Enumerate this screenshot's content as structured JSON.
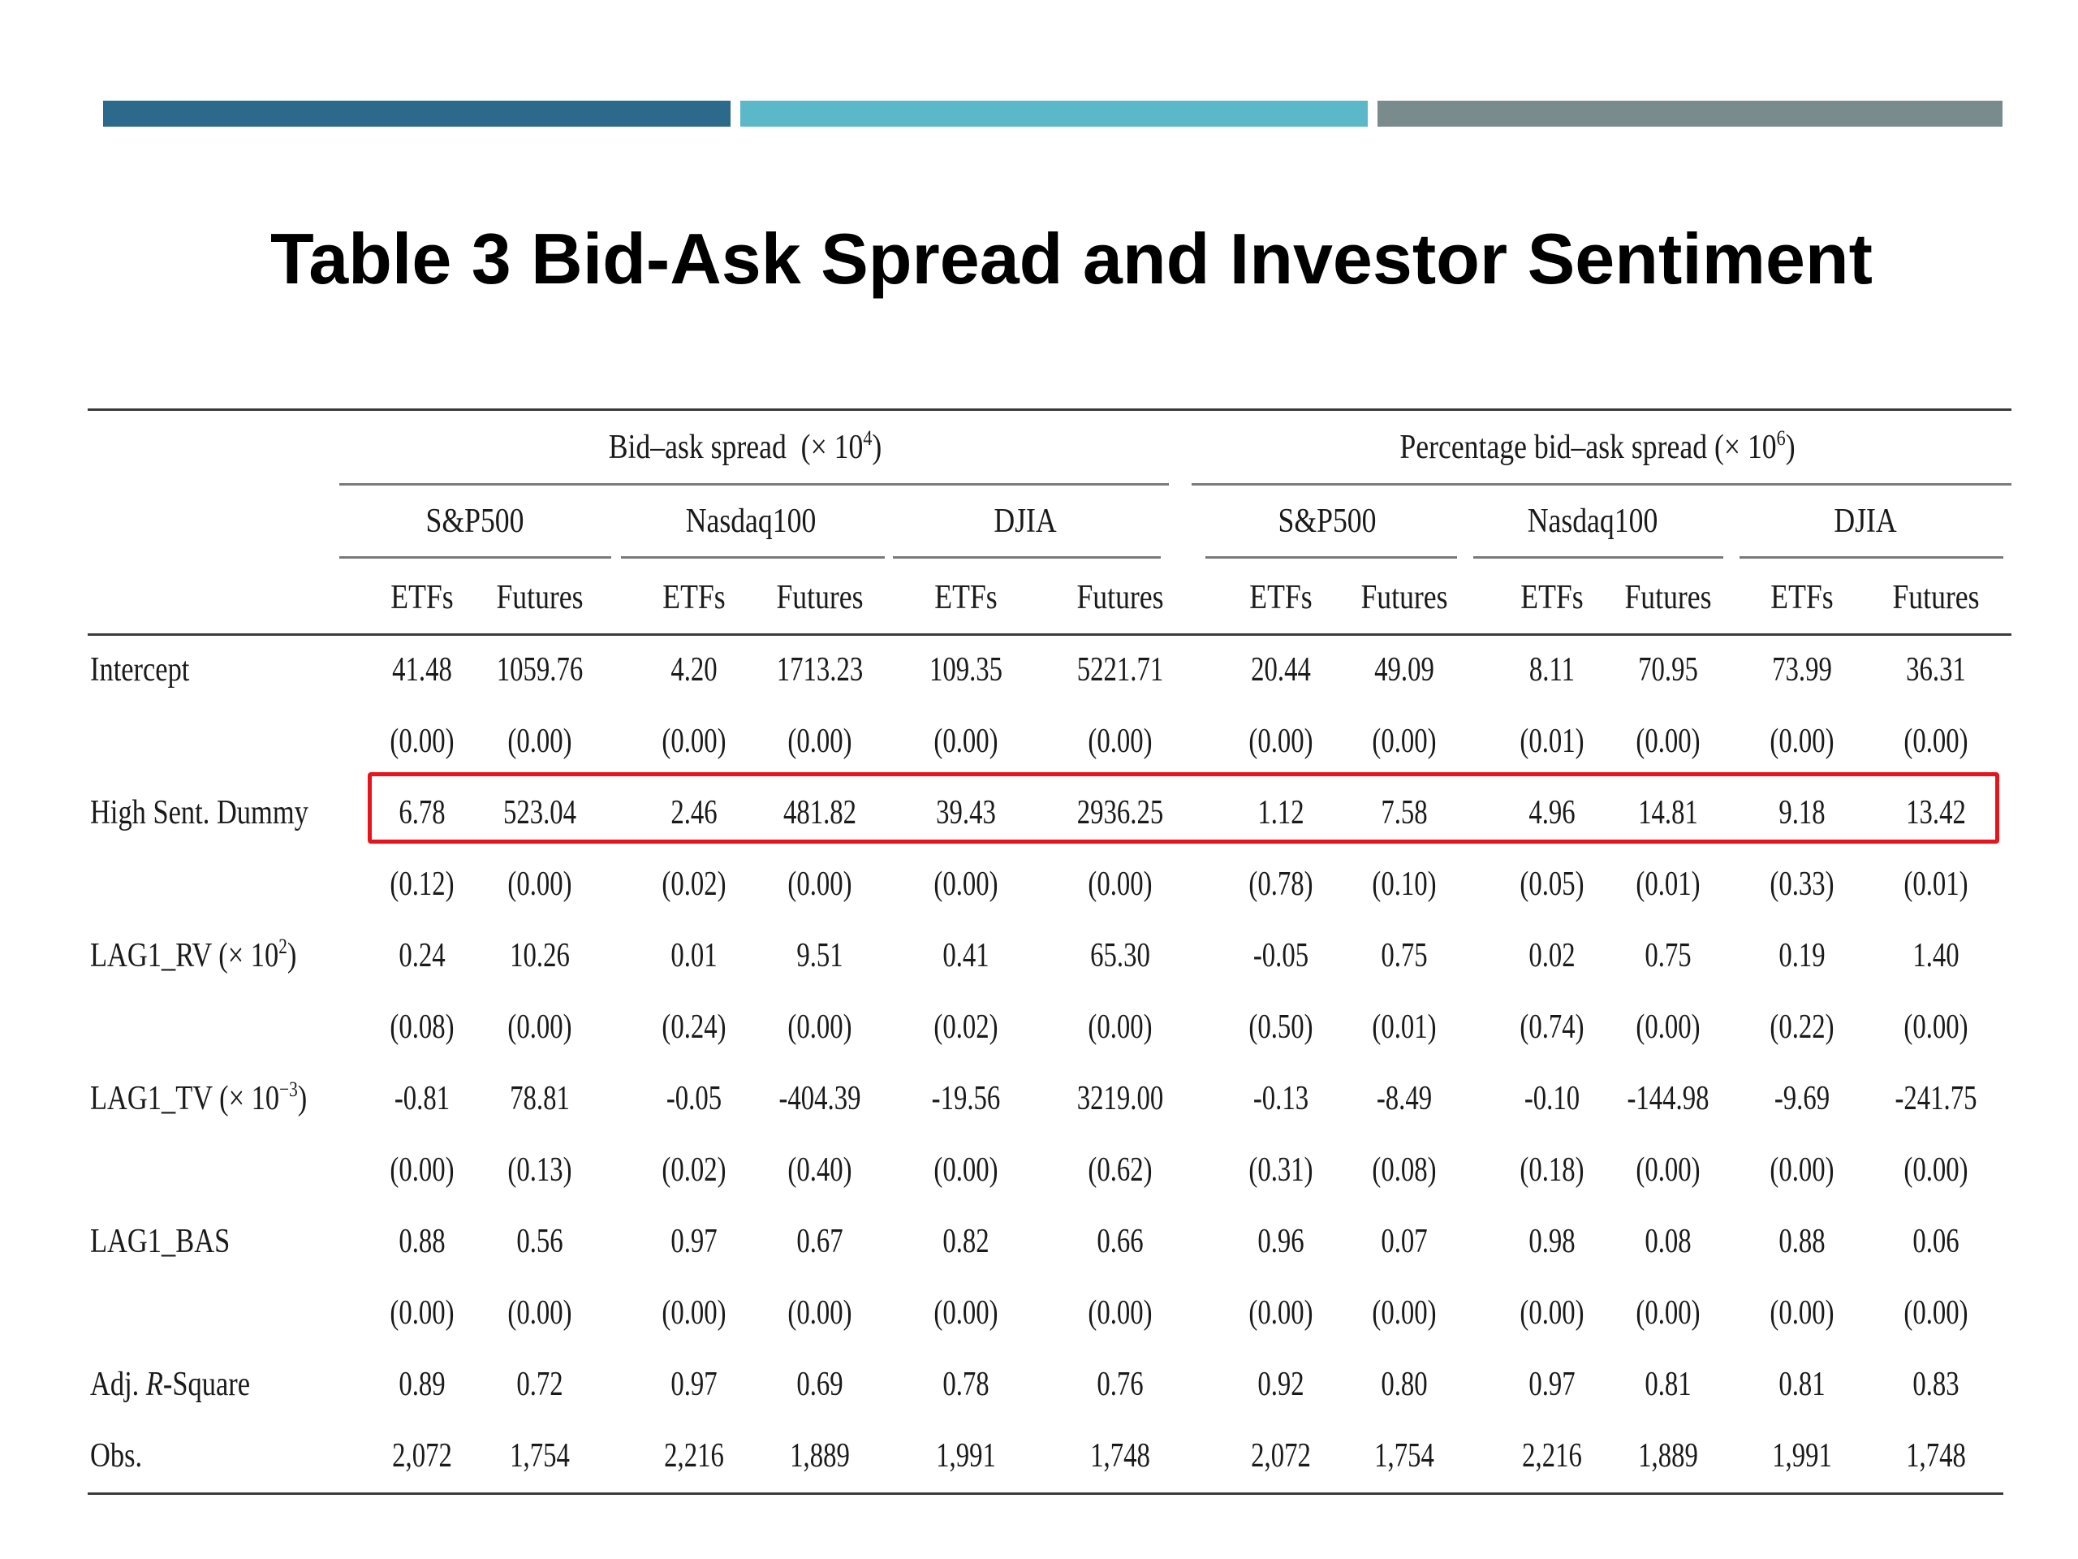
{
  "colors": {
    "bar1": "#2b6a8a",
    "bar2": "#5bb8c8",
    "bar3": "#7a8b8e",
    "highlight": "#e8141c"
  },
  "title": "Table 3 Bid-Ask Spread and Investor Sentiment",
  "groups": [
    {
      "label": "Bid–ask spread",
      "scale_text": "(× 10",
      "scale_exp": "4",
      "scale_close": ")"
    },
    {
      "label": "Percentage bid–ask spread",
      "scale_text": "(× 10",
      "scale_exp": "6",
      "scale_close": ")"
    }
  ],
  "indices": [
    "S&P500",
    "Nasdaq100",
    "DJIA",
    "S&P500",
    "Nasdaq100",
    "DJIA"
  ],
  "subcols": [
    "ETFs",
    "Futures",
    "ETFs",
    "Futures",
    "ETFs",
    "Futures",
    "ETFs",
    "Futures",
    "ETFs",
    "Futures",
    "ETFs",
    "Futures"
  ],
  "rows": [
    {
      "label": "Intercept",
      "values": [
        "41.48",
        "1059.76",
        "4.20",
        "1713.23",
        "109.35",
        "5221.71",
        "20.44",
        "49.09",
        "8.11",
        "70.95",
        "73.99",
        "36.31"
      ]
    },
    {
      "label": "",
      "values": [
        "(0.00)",
        "(0.00)",
        "(0.00)",
        "(0.00)",
        "(0.00)",
        "(0.00)",
        "(0.00)",
        "(0.00)",
        "(0.01)",
        "(0.00)",
        "(0.00)",
        "(0.00)"
      ]
    },
    {
      "label": "High Sent. Dummy",
      "values": [
        "6.78",
        "523.04",
        "2.46",
        "481.82",
        "39.43",
        "2936.25",
        "1.12",
        "7.58",
        "4.96",
        "14.81",
        "9.18",
        "13.42"
      ]
    },
    {
      "label": "",
      "values": [
        "(0.12)",
        "(0.00)",
        "(0.02)",
        "(0.00)",
        "(0.00)",
        "(0.00)",
        "(0.78)",
        "(0.10)",
        "(0.05)",
        "(0.01)",
        "(0.33)",
        "(0.01)"
      ]
    },
    {
      "label": "LAG1_RV  (× 10",
      "label_exp": "2",
      "label_close": ")",
      "values": [
        "0.24",
        "10.26",
        "0.01",
        "9.51",
        "0.41",
        "65.30",
        "-0.05",
        "0.75",
        "0.02",
        "0.75",
        "0.19",
        "1.40"
      ]
    },
    {
      "label": "",
      "values": [
        "(0.08)",
        "(0.00)",
        "(0.24)",
        "(0.00)",
        "(0.02)",
        "(0.00)",
        "(0.50)",
        "(0.01)",
        "(0.74)",
        "(0.00)",
        "(0.22)",
        "(0.00)"
      ]
    },
    {
      "label": "LAG1_TV  (× 10",
      "label_exp": "−3",
      "label_close": ")",
      "values": [
        "-0.81",
        "78.81",
        "-0.05",
        "-404.39",
        "-19.56",
        "3219.00",
        "-0.13",
        "-8.49",
        "-0.10",
        "-144.98",
        "-9.69",
        "-241.75"
      ]
    },
    {
      "label": "",
      "values": [
        "(0.00)",
        "(0.13)",
        "(0.02)",
        "(0.40)",
        "(0.00)",
        "(0.62)",
        "(0.31)",
        "(0.08)",
        "(0.18)",
        "(0.00)",
        "(0.00)",
        "(0.00)"
      ]
    },
    {
      "label": "LAG1_BAS",
      "values": [
        "0.88",
        "0.56",
        "0.97",
        "0.67",
        "0.82",
        "0.66",
        "0.96",
        "0.07",
        "0.98",
        "0.08",
        "0.88",
        "0.06"
      ]
    },
    {
      "label": "",
      "values": [
        "(0.00)",
        "(0.00)",
        "(0.00)",
        "(0.00)",
        "(0.00)",
        "(0.00)",
        "(0.00)",
        "(0.00)",
        "(0.00)",
        "(0.00)",
        "(0.00)",
        "(0.00)"
      ]
    },
    {
      "label": "Adj. ",
      "label_italic": "R",
      "label_rest": "-Square",
      "values": [
        "0.89",
        "0.72",
        "0.97",
        "0.69",
        "0.78",
        "0.76",
        "0.92",
        "0.80",
        "0.97",
        "0.81",
        "0.81",
        "0.83"
      ]
    },
    {
      "label": "Obs.",
      "values": [
        "2,072",
        "1,754",
        "2,216",
        "1,889",
        "1,991",
        "1,748",
        "2,072",
        "1,754",
        "2,216",
        "1,889",
        "1,991",
        "1,748"
      ]
    }
  ]
}
